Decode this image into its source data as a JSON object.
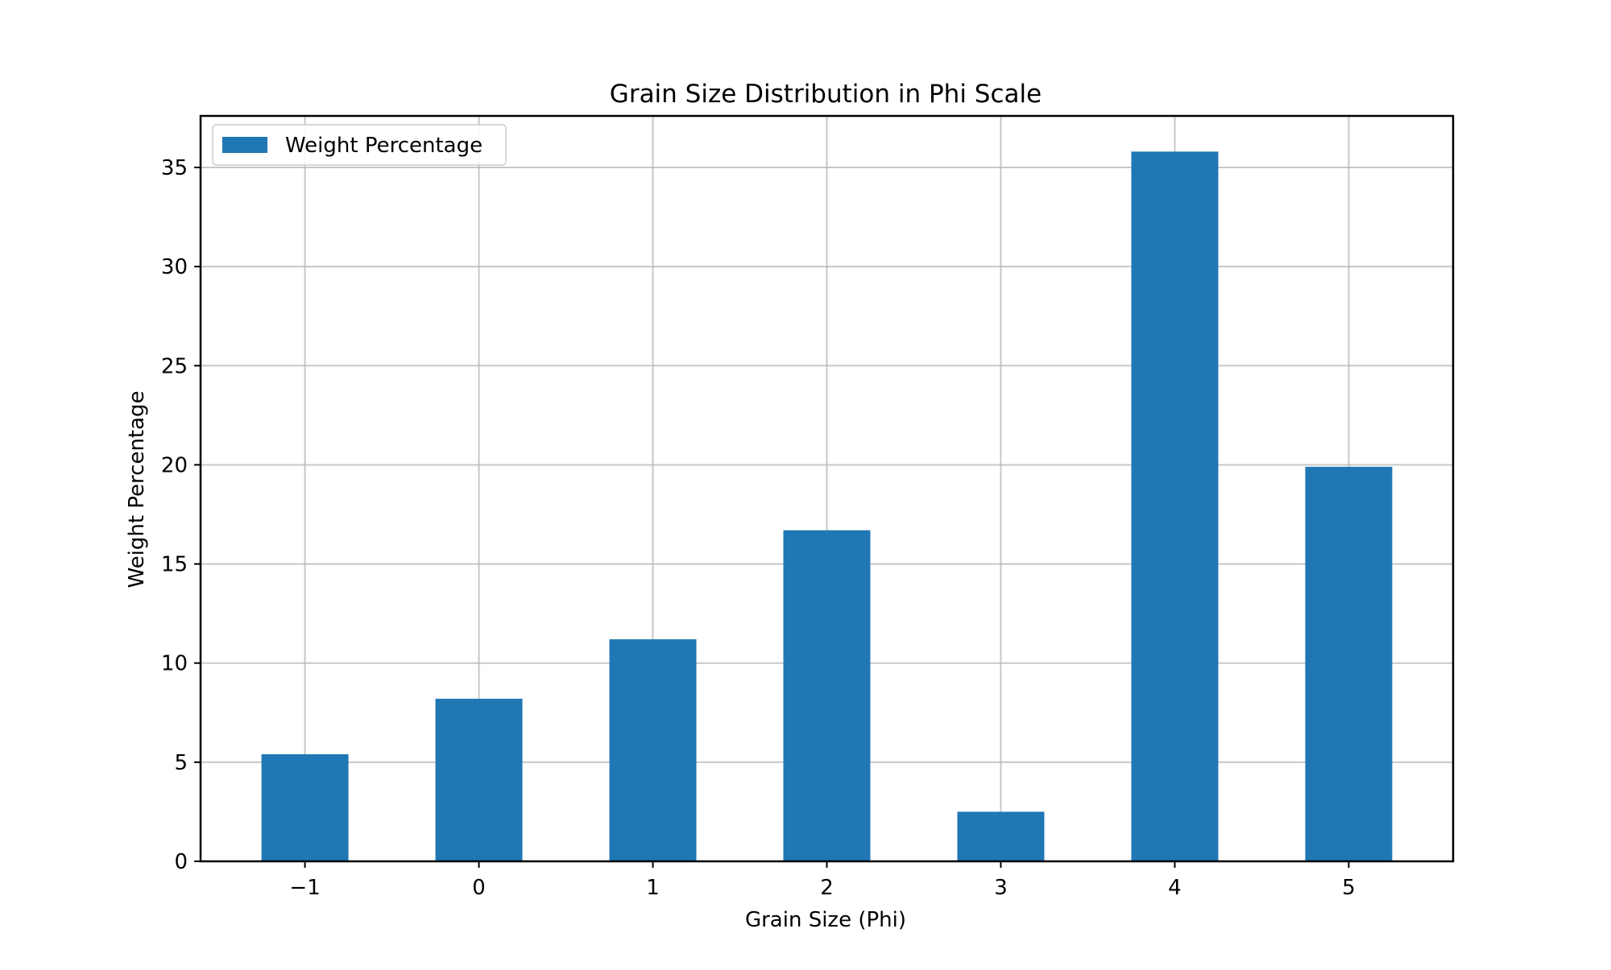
{
  "chart_data": {
    "type": "bar",
    "title": "Grain Size Distribution in Phi Scale",
    "xlabel": "Grain Size (Phi)",
    "ylabel": "Weight Percentage",
    "categories": [
      -1,
      0,
      1,
      2,
      3,
      4,
      5
    ],
    "category_labels": [
      "−1",
      "0",
      "1",
      "2",
      "3",
      "4",
      "5"
    ],
    "series": [
      {
        "name": "Weight Percentage",
        "color": "#1f77b4",
        "values": [
          5.4,
          8.2,
          11.2,
          16.7,
          2.5,
          35.8,
          19.9
        ]
      }
    ],
    "xlim": [
      -1.6,
      5.6
    ],
    "ylim": [
      0,
      37.6
    ],
    "yticks": [
      0,
      5,
      10,
      15,
      20,
      25,
      30,
      35
    ],
    "grid": true,
    "legend": "top-left"
  }
}
